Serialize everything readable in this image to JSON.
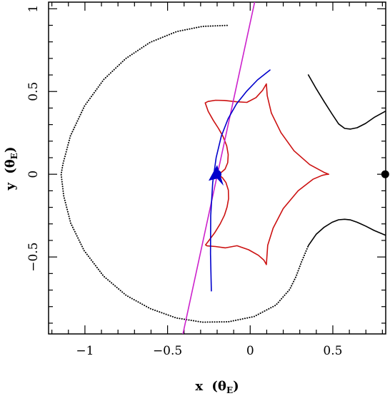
{
  "chart_data": {
    "type": "line",
    "title": "",
    "xlabel": {
      "main": "x",
      "paren_open": "(",
      "symbol": "θ",
      "subscript": "E",
      "paren_close": ")"
    },
    "ylabel": {
      "main": "y",
      "paren_open": "(",
      "symbol": "θ",
      "subscript": "E",
      "paren_close": ")"
    },
    "xlim": [
      -1.22,
      0.82
    ],
    "ylim": [
      -0.965,
      1.04
    ],
    "xticks": [
      {
        "value": -1,
        "label": "−1"
      },
      {
        "value": -0.5,
        "label": "−0.5"
      },
      {
        "value": 0,
        "label": "0"
      },
      {
        "value": 0.5,
        "label": "0.5"
      }
    ],
    "yticks": [
      {
        "value": -0.5,
        "label": "−0.5"
      },
      {
        "value": 0,
        "label": "0"
      },
      {
        "value": 0.5,
        "label": "0.5"
      },
      {
        "value": 1,
        "label": "1"
      }
    ],
    "grid": false,
    "legend": "none",
    "colors": {
      "critical_curve": "#000000",
      "caustic": "#cc1111",
      "trajectory": "#0000cc",
      "straight_line": "#cc22cc",
      "lens": "#000000",
      "source": "#0000cc"
    },
    "series": [
      {
        "id": "critical-curve-dotted",
        "style": "dotted",
        "color": "#000000",
        "x": [
          -0.1398,
          -0.2893,
          -0.4443,
          -0.6052,
          -0.7531,
          -0.886,
          -1.002,
          -1.0882,
          -1.1326,
          -1.144,
          -1.1282,
          -1.0859,
          -1.005,
          -0.887,
          -0.7502,
          -0.606,
          -0.4478,
          -0.2902,
          -0.1318,
          0.023,
          0.1558,
          0.239,
          0.278,
          0.3088,
          0.352
        ],
        "y": [
          0.8995,
          0.8933,
          0.8625,
          0.7972,
          0.6989,
          0.5728,
          0.4131,
          0.2305,
          0.0635,
          0.0,
          -0.1305,
          -0.2955,
          -0.4608,
          -0.6157,
          -0.7322,
          -0.8114,
          -0.8683,
          -0.8939,
          -0.8917,
          -0.8602,
          -0.7907,
          -0.6961,
          -0.6172,
          -0.5342,
          -0.4311
        ]
      },
      {
        "id": "critical-curve-upper",
        "style": "solid",
        "color": "#000000",
        "x": [
          0.352,
          0.399,
          0.448,
          0.496,
          0.535,
          0.572,
          0.607,
          0.647,
          0.698,
          0.75,
          0.817
        ],
        "y": [
          0.6,
          0.518,
          0.438,
          0.363,
          0.304,
          0.277,
          0.273,
          0.281,
          0.307,
          0.343,
          0.38
        ]
      },
      {
        "id": "critical-curve-lower",
        "style": "solid",
        "color": "#000000",
        "x": [
          0.352,
          0.399,
          0.448,
          0.496,
          0.535,
          0.572,
          0.607,
          0.647,
          0.698,
          0.75,
          0.817
        ],
        "y": [
          -0.4311,
          -0.363,
          -0.32,
          -0.29,
          -0.275,
          -0.272,
          -0.276,
          -0.29,
          -0.313,
          -0.34,
          -0.368
        ]
      },
      {
        "id": "caustic",
        "style": "solid",
        "color": "#cc1111",
        "x": [
          0.098,
          0.106,
          0.139,
          0.2,
          0.29,
          0.38,
          0.435,
          0.462,
          0.475,
          0.447,
          0.36,
          0.265,
          0.186,
          0.128,
          0.103,
          0.098,
          0.075,
          0.035,
          -0.02,
          -0.085,
          -0.155,
          -0.21,
          -0.255,
          -0.272,
          -0.254,
          -0.223,
          -0.192,
          -0.164,
          -0.142,
          -0.133,
          -0.136,
          -0.152,
          -0.175,
          -0.19,
          -0.2,
          -0.186,
          -0.168,
          -0.147,
          -0.132,
          -0.131,
          -0.14,
          -0.156,
          -0.182,
          -0.213,
          -0.245,
          -0.27,
          -0.261,
          -0.21,
          -0.15,
          -0.08,
          -0.01,
          0.05,
          0.083,
          0.098
        ],
        "y": [
          -0.546,
          -0.429,
          -0.325,
          -0.208,
          -0.1,
          -0.03,
          -0.007,
          -0.001,
          0.0,
          0.011,
          0.058,
          0.142,
          0.252,
          0.37,
          0.475,
          0.546,
          0.507,
          0.463,
          0.434,
          0.438,
          0.446,
          0.447,
          0.44,
          0.431,
          0.38,
          0.325,
          0.277,
          0.228,
          0.171,
          0.119,
          0.07,
          0.031,
          0.011,
          0.003,
          0.0,
          -0.006,
          -0.021,
          -0.05,
          -0.096,
          -0.148,
          -0.198,
          -0.248,
          -0.3,
          -0.351,
          -0.394,
          -0.427,
          -0.433,
          -0.437,
          -0.445,
          -0.432,
          -0.456,
          -0.49,
          -0.519,
          -0.546
        ]
      },
      {
        "id": "straight-trajectory",
        "style": "solid",
        "color": "#cc22cc",
        "x": [
          -0.407,
          0.027
        ],
        "y": [
          -0.965,
          1.04
        ]
      },
      {
        "id": "source-trajectory",
        "style": "solid",
        "color": "#0000cc",
        "x": [
          -0.235,
          -0.24,
          -0.239,
          -0.227,
          -0.206,
          -0.175,
          -0.134,
          -0.083,
          -0.023,
          0.044,
          0.12
        ],
        "y": [
          -0.705,
          -0.48,
          -0.25,
          -0.05,
          0.1,
          0.23,
          0.335,
          0.425,
          0.5,
          0.57,
          0.63
        ]
      }
    ],
    "points": [
      {
        "id": "lens-mass",
        "x": 0.817,
        "y": 0.0,
        "color": "#000000"
      },
      {
        "id": "source-position",
        "x": -0.2,
        "y": 0.0,
        "color": "#0000cc"
      }
    ],
    "arrow": {
      "x": -0.2,
      "y": 0.0,
      "dx": -0.005,
      "dy": -0.05,
      "color": "#0000cc"
    }
  }
}
